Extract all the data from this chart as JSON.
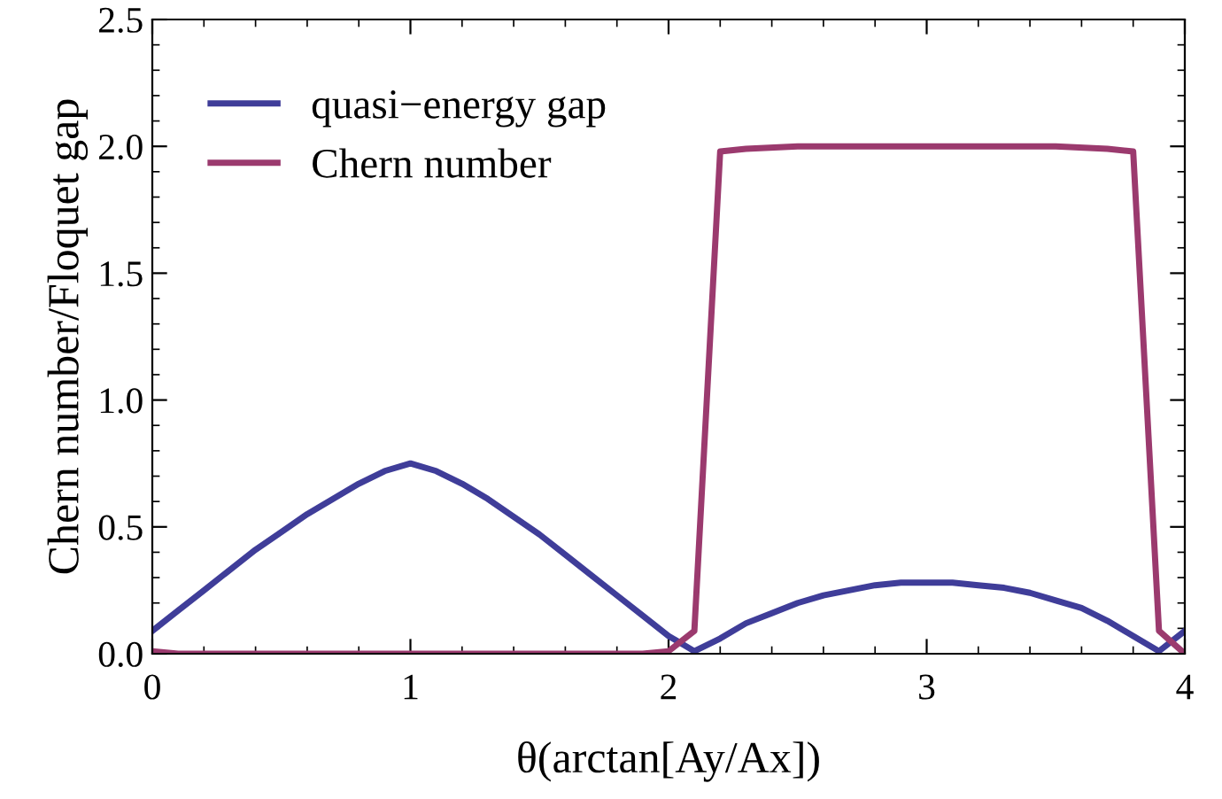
{
  "chart_data": {
    "type": "line",
    "xlabel": "θ(arctan[Ay/Ax])",
    "ylabel": "Chern number/Floquet gap",
    "xlim": [
      0,
      4
    ],
    "ylim": [
      0,
      2.5
    ],
    "xticks": [
      0,
      1,
      2,
      3,
      4
    ],
    "yticks": [
      {
        "value": 0,
        "label": "0.0"
      },
      {
        "value": 0.5,
        "label": "0.5"
      },
      {
        "value": 1,
        "label": "1.0"
      },
      {
        "value": 1.5,
        "label": "1.5"
      },
      {
        "value": 2,
        "label": "2.0"
      },
      {
        "value": 2.5,
        "label": "2.5"
      }
    ],
    "grid": false,
    "legend": "top left",
    "marker": "none",
    "line_style": "solid",
    "series": [
      {
        "name": "quasi−energy gap",
        "color": "#3f3d99",
        "x": [
          0,
          0.1,
          0.2,
          0.3,
          0.4,
          0.5,
          0.6,
          0.7,
          0.8,
          0.9,
          1.0,
          1.1,
          1.2,
          1.3,
          1.4,
          1.5,
          1.6,
          1.7,
          1.8,
          1.9,
          2.0,
          2.1,
          2.2,
          2.3,
          2.4,
          2.5,
          2.6,
          2.7,
          2.8,
          2.9,
          3.0,
          3.1,
          3.2,
          3.3,
          3.4,
          3.5,
          3.6,
          3.7,
          3.8,
          3.9,
          4.0
        ],
        "values": [
          0.09,
          0.17,
          0.25,
          0.33,
          0.41,
          0.48,
          0.55,
          0.61,
          0.67,
          0.72,
          0.75,
          0.72,
          0.67,
          0.61,
          0.54,
          0.47,
          0.39,
          0.31,
          0.23,
          0.15,
          0.07,
          0.01,
          0.06,
          0.12,
          0.16,
          0.2,
          0.23,
          0.25,
          0.27,
          0.28,
          0.28,
          0.28,
          0.27,
          0.26,
          0.24,
          0.21,
          0.18,
          0.13,
          0.07,
          0.01,
          0.09
        ]
      },
      {
        "name": "Chern number",
        "color": "#9b3a6e",
        "x": [
          0,
          0.1,
          0.5,
          1.0,
          1.5,
          1.9,
          2.0,
          2.1,
          2.2,
          2.3,
          2.5,
          3.0,
          3.5,
          3.7,
          3.8,
          3.9,
          4.0
        ],
        "values": [
          0.01,
          0.0,
          0.0,
          0.0,
          0.0,
          0.0,
          0.01,
          0.09,
          1.98,
          1.99,
          2.0,
          2.0,
          2.0,
          1.99,
          1.98,
          0.09,
          0.0
        ]
      }
    ]
  }
}
